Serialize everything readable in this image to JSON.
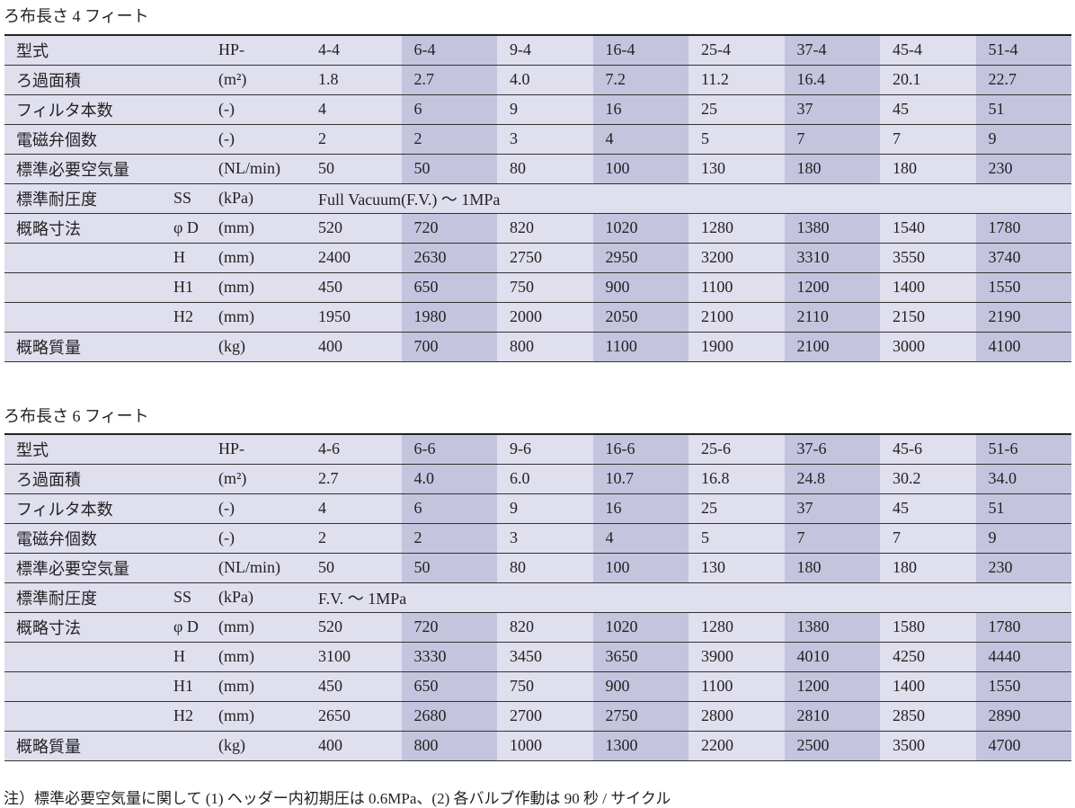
{
  "tables": [
    {
      "title": "ろ布長さ 4 フィート",
      "rows": [
        {
          "label": "型式",
          "unit": "HP-",
          "values": [
            "4-4",
            "6-4",
            "9-4",
            "16-4",
            "25-4",
            "37-4",
            "45-4",
            "51-4"
          ]
        },
        {
          "label": "ろ過面積",
          "unit": "(m²)",
          "values": [
            "1.8",
            "2.7",
            "4.0",
            "7.2",
            "11.2",
            "16.4",
            "20.1",
            "22.7"
          ]
        },
        {
          "label": "フィルタ本数",
          "unit": "(-)",
          "values": [
            "4",
            "6",
            "9",
            "16",
            "25",
            "37",
            "45",
            "51"
          ]
        },
        {
          "label": "電磁弁個数",
          "unit": "(-)",
          "values": [
            "2",
            "2",
            "3",
            "4",
            "5",
            "7",
            "7",
            "9"
          ]
        },
        {
          "label": "標準必要空気量",
          "unit": "(NL/min)",
          "values": [
            "50",
            "50",
            "80",
            "100",
            "130",
            "180",
            "180",
            "230"
          ]
        },
        {
          "label": "標準耐圧度",
          "sub": "SS",
          "unit": "(kPa)",
          "span": "Full Vacuum(F.V.) 〜 1MPa"
        },
        {
          "label": "概略寸法",
          "sub": "φ D",
          "unit": "(mm)",
          "values": [
            "520",
            "720",
            "820",
            "1020",
            "1280",
            "1380",
            "1540",
            "1780"
          ]
        },
        {
          "sub": "H",
          "unit": "(mm)",
          "values": [
            "2400",
            "2630",
            "2750",
            "2950",
            "3200",
            "3310",
            "3550",
            "3740"
          ]
        },
        {
          "sub": "H1",
          "unit": "(mm)",
          "values": [
            "450",
            "650",
            "750",
            "900",
            "1100",
            "1200",
            "1400",
            "1550"
          ]
        },
        {
          "sub": "H2",
          "unit": "(mm)",
          "values": [
            "1950",
            "1980",
            "2000",
            "2050",
            "2100",
            "2110",
            "2150",
            "2190"
          ]
        },
        {
          "label": "概略質量",
          "unit": "(kg)",
          "values": [
            "400",
            "700",
            "800",
            "1100",
            "1900",
            "2100",
            "3000",
            "4100"
          ]
        }
      ]
    },
    {
      "title": "ろ布長さ 6 フィート",
      "rows": [
        {
          "label": "型式",
          "unit": "HP-",
          "values": [
            "4-6",
            "6-6",
            "9-6",
            "16-6",
            "25-6",
            "37-6",
            "45-6",
            "51-6"
          ]
        },
        {
          "label": "ろ過面積",
          "unit": "(m²)",
          "values": [
            "2.7",
            "4.0",
            "6.0",
            "10.7",
            "16.8",
            "24.8",
            "30.2",
            "34.0"
          ]
        },
        {
          "label": "フィルタ本数",
          "unit": "(-)",
          "values": [
            "4",
            "6",
            "9",
            "16",
            "25",
            "37",
            "45",
            "51"
          ]
        },
        {
          "label": "電磁弁個数",
          "unit": "(-)",
          "values": [
            "2",
            "2",
            "3",
            "4",
            "5",
            "7",
            "7",
            "9"
          ]
        },
        {
          "label": "標準必要空気量",
          "unit": "(NL/min)",
          "values": [
            "50",
            "50",
            "80",
            "100",
            "130",
            "180",
            "180",
            "230"
          ]
        },
        {
          "label": "標準耐圧度",
          "sub": "SS",
          "unit": "(kPa)",
          "span": "F.V. 〜 1MPa"
        },
        {
          "label": "概略寸法",
          "sub": "φ D",
          "unit": "(mm)",
          "values": [
            "520",
            "720",
            "820",
            "1020",
            "1280",
            "1380",
            "1580",
            "1780"
          ]
        },
        {
          "sub": "H",
          "unit": "(mm)",
          "values": [
            "3100",
            "3330",
            "3450",
            "3650",
            "3900",
            "4010",
            "4250",
            "4440"
          ]
        },
        {
          "sub": "H1",
          "unit": "(mm)",
          "values": [
            "450",
            "650",
            "750",
            "900",
            "1100",
            "1200",
            "1400",
            "1550"
          ]
        },
        {
          "sub": "H2",
          "unit": "(mm)",
          "values": [
            "2650",
            "2680",
            "2700",
            "2750",
            "2800",
            "2810",
            "2850",
            "2890"
          ]
        },
        {
          "label": "概略質量",
          "unit": "(kg)",
          "values": [
            "400",
            "800",
            "1000",
            "1300",
            "2200",
            "2500",
            "3500",
            "4700"
          ]
        }
      ]
    }
  ],
  "footnote": "注）標準必要空気量に関して (1) ヘッダー内初期圧は 0.6MPa、(2) 各バルブ作動は 90 秒 / サイクル"
}
